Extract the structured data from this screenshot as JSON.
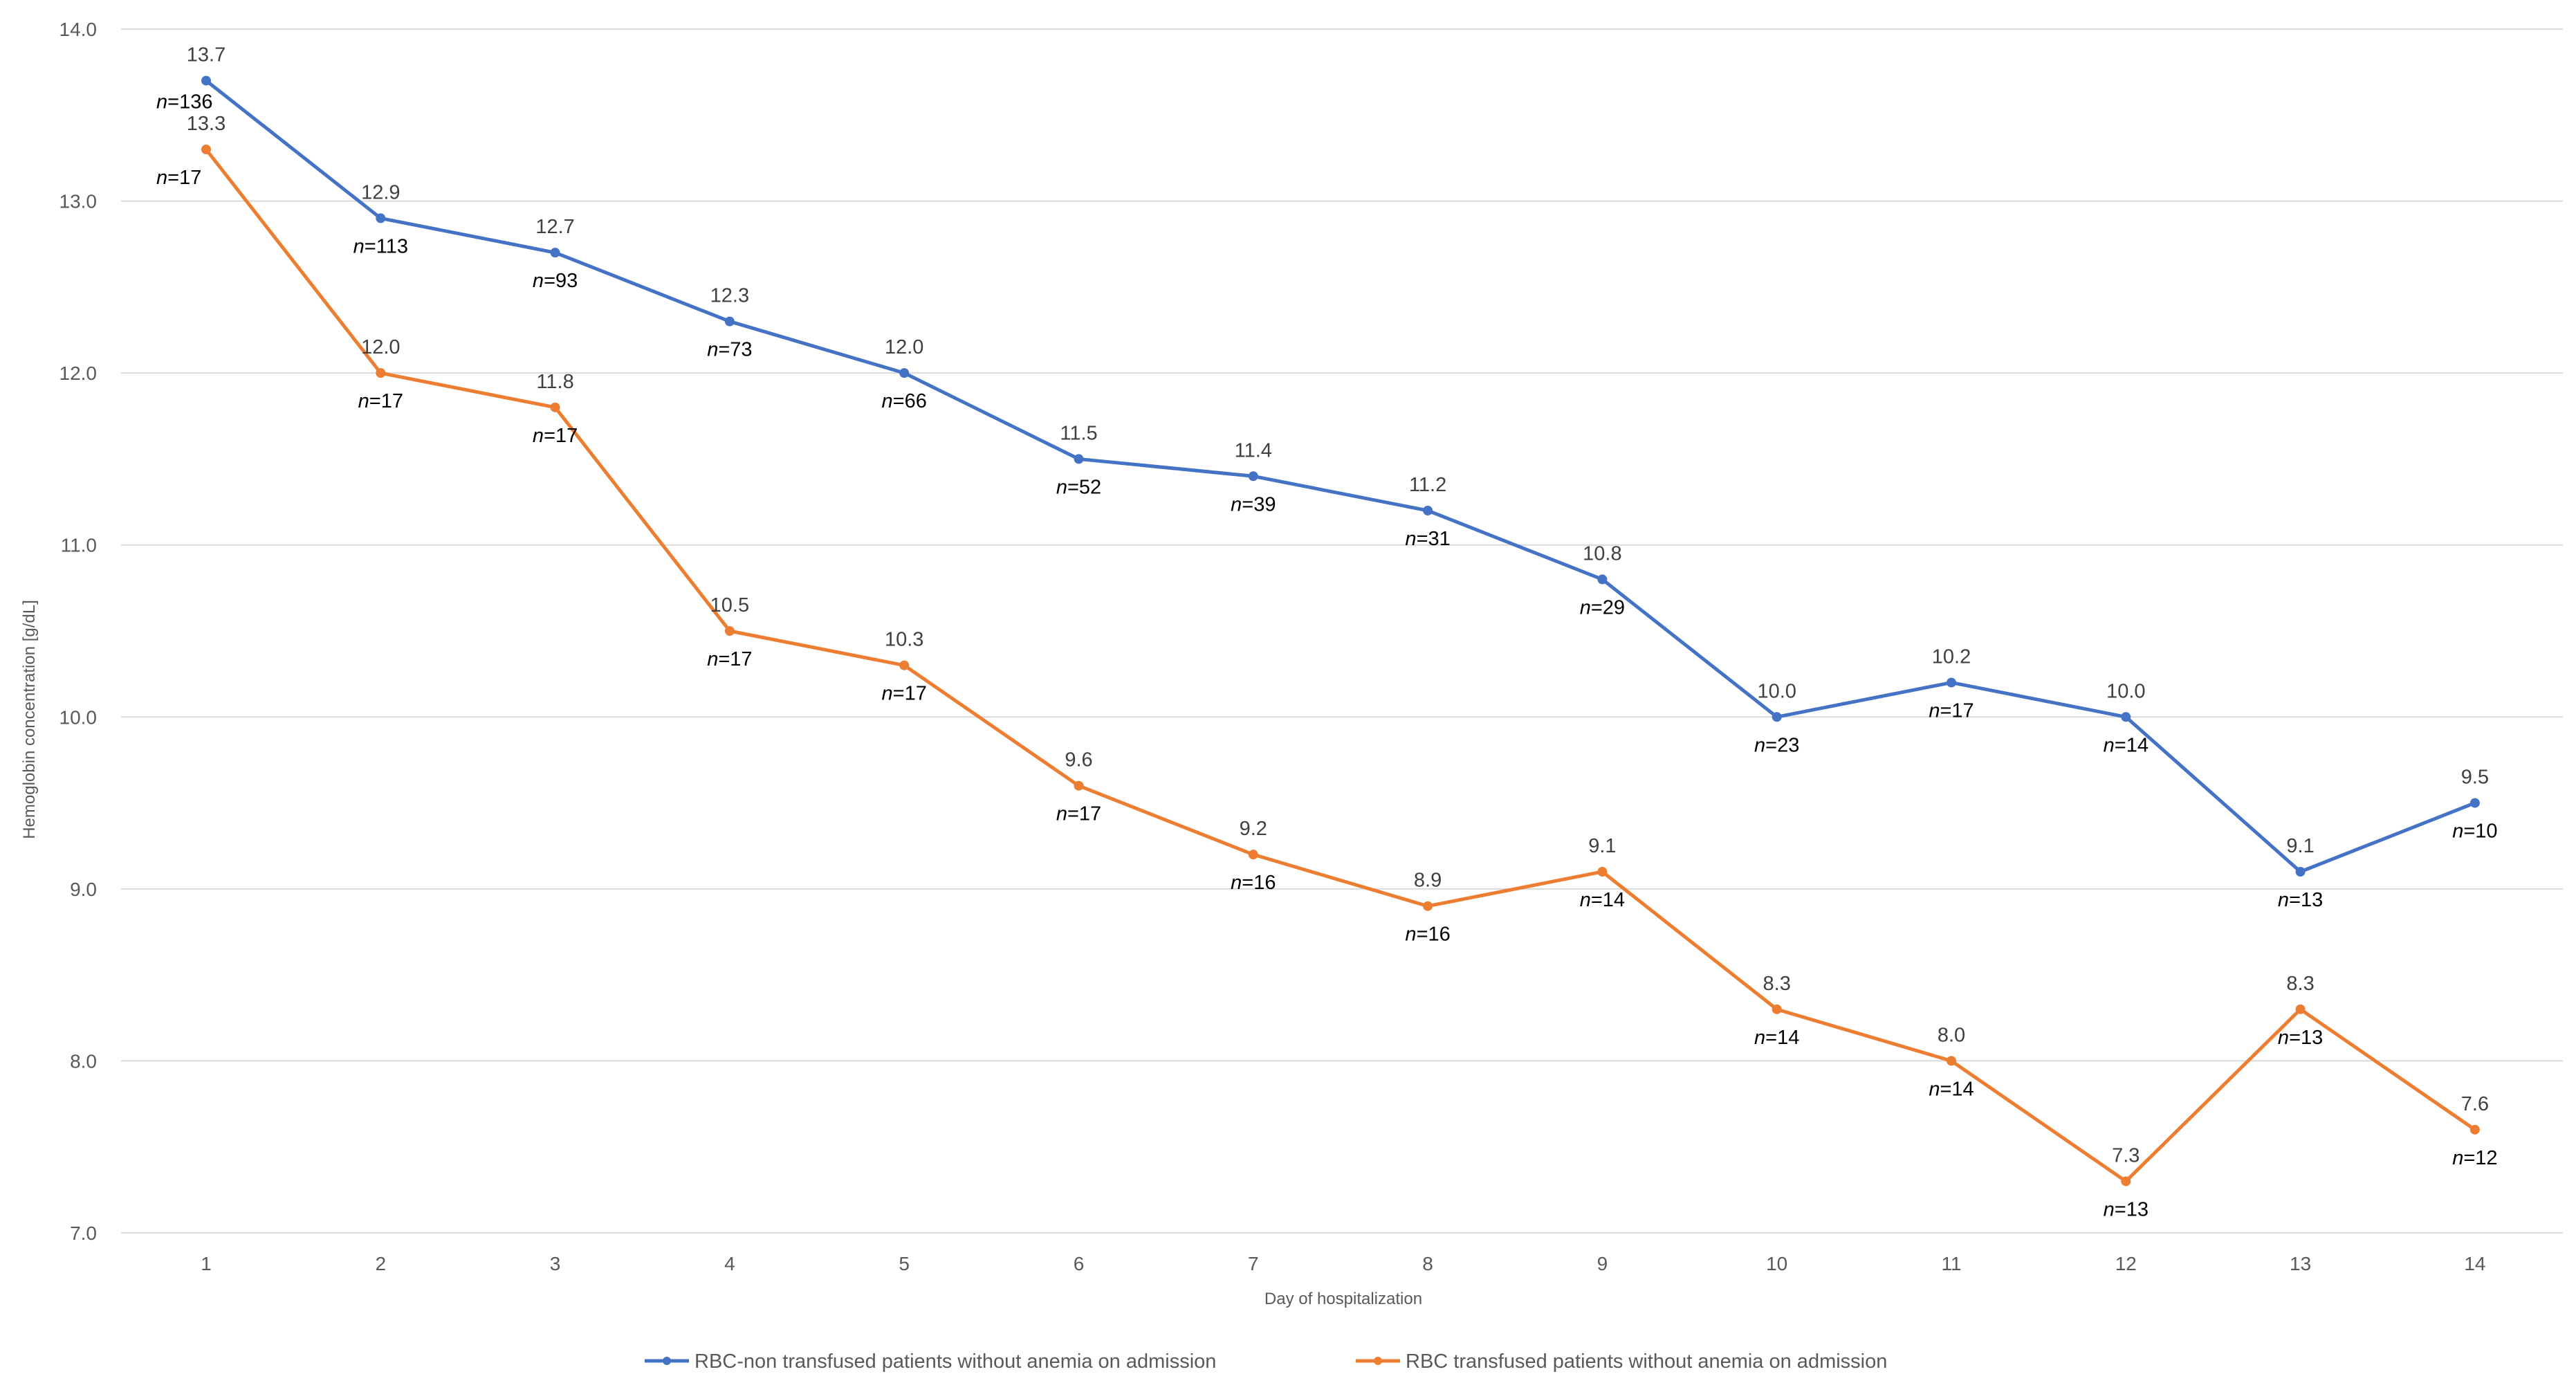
{
  "chart_data": {
    "type": "line",
    "title": "",
    "xlabel": "Day of hospitalization",
    "ylabel": "Hemoglobin concentration [g/dL]",
    "ylim": [
      7.0,
      14.0
    ],
    "yticks": [
      "7.0",
      "8.0",
      "9.0",
      "10.0",
      "11.0",
      "12.0",
      "13.0",
      "14.0"
    ],
    "categories": [
      "1",
      "2",
      "3",
      "4",
      "5",
      "6",
      "7",
      "8",
      "9",
      "10",
      "11",
      "12",
      "13",
      "14"
    ],
    "grid": true,
    "legend_position": "bottom",
    "series": [
      {
        "name": "RBC-non transfused patients without anemia on admission",
        "color": "#4472c4",
        "values": [
          13.7,
          12.9,
          12.7,
          12.3,
          12.0,
          11.5,
          11.4,
          11.2,
          10.8,
          10.0,
          10.2,
          10.0,
          9.1,
          9.5
        ],
        "value_labels": [
          "13.7",
          "12.9",
          "12.7",
          "12.3",
          "12.0",
          "11.5",
          "11.4",
          "11.2",
          "10.8",
          "10.0",
          "10.2",
          "10.0",
          "9.1",
          "9.5"
        ],
        "n_prefix": "n",
        "n_values": [
          "=136",
          "=113",
          "=93",
          "=73",
          "=66",
          "=52",
          "=39",
          "=31",
          "=29",
          "=23",
          "=17",
          "=14",
          "=13",
          "=10"
        ]
      },
      {
        "name": "RBC transfused patients without anemia on admission",
        "color": "#ed7d31",
        "values": [
          13.3,
          12.0,
          11.8,
          10.5,
          10.3,
          9.6,
          9.2,
          8.9,
          9.1,
          8.3,
          8.0,
          7.3,
          8.3,
          7.6
        ],
        "value_labels": [
          "13.3",
          "12.0",
          "11.8",
          "10.5",
          "10.3",
          "9.6",
          "9.2",
          "8.9",
          "9.1",
          "8.3",
          "8.0",
          "7.3",
          "8.3",
          "7.6"
        ],
        "n_prefix": "n",
        "n_values": [
          "=17",
          "=17",
          "=17",
          "=17",
          "=17",
          "=17",
          "=16",
          "=16",
          "=14",
          "=14",
          "=14",
          "=13",
          "=13",
          "=12"
        ]
      }
    ]
  }
}
